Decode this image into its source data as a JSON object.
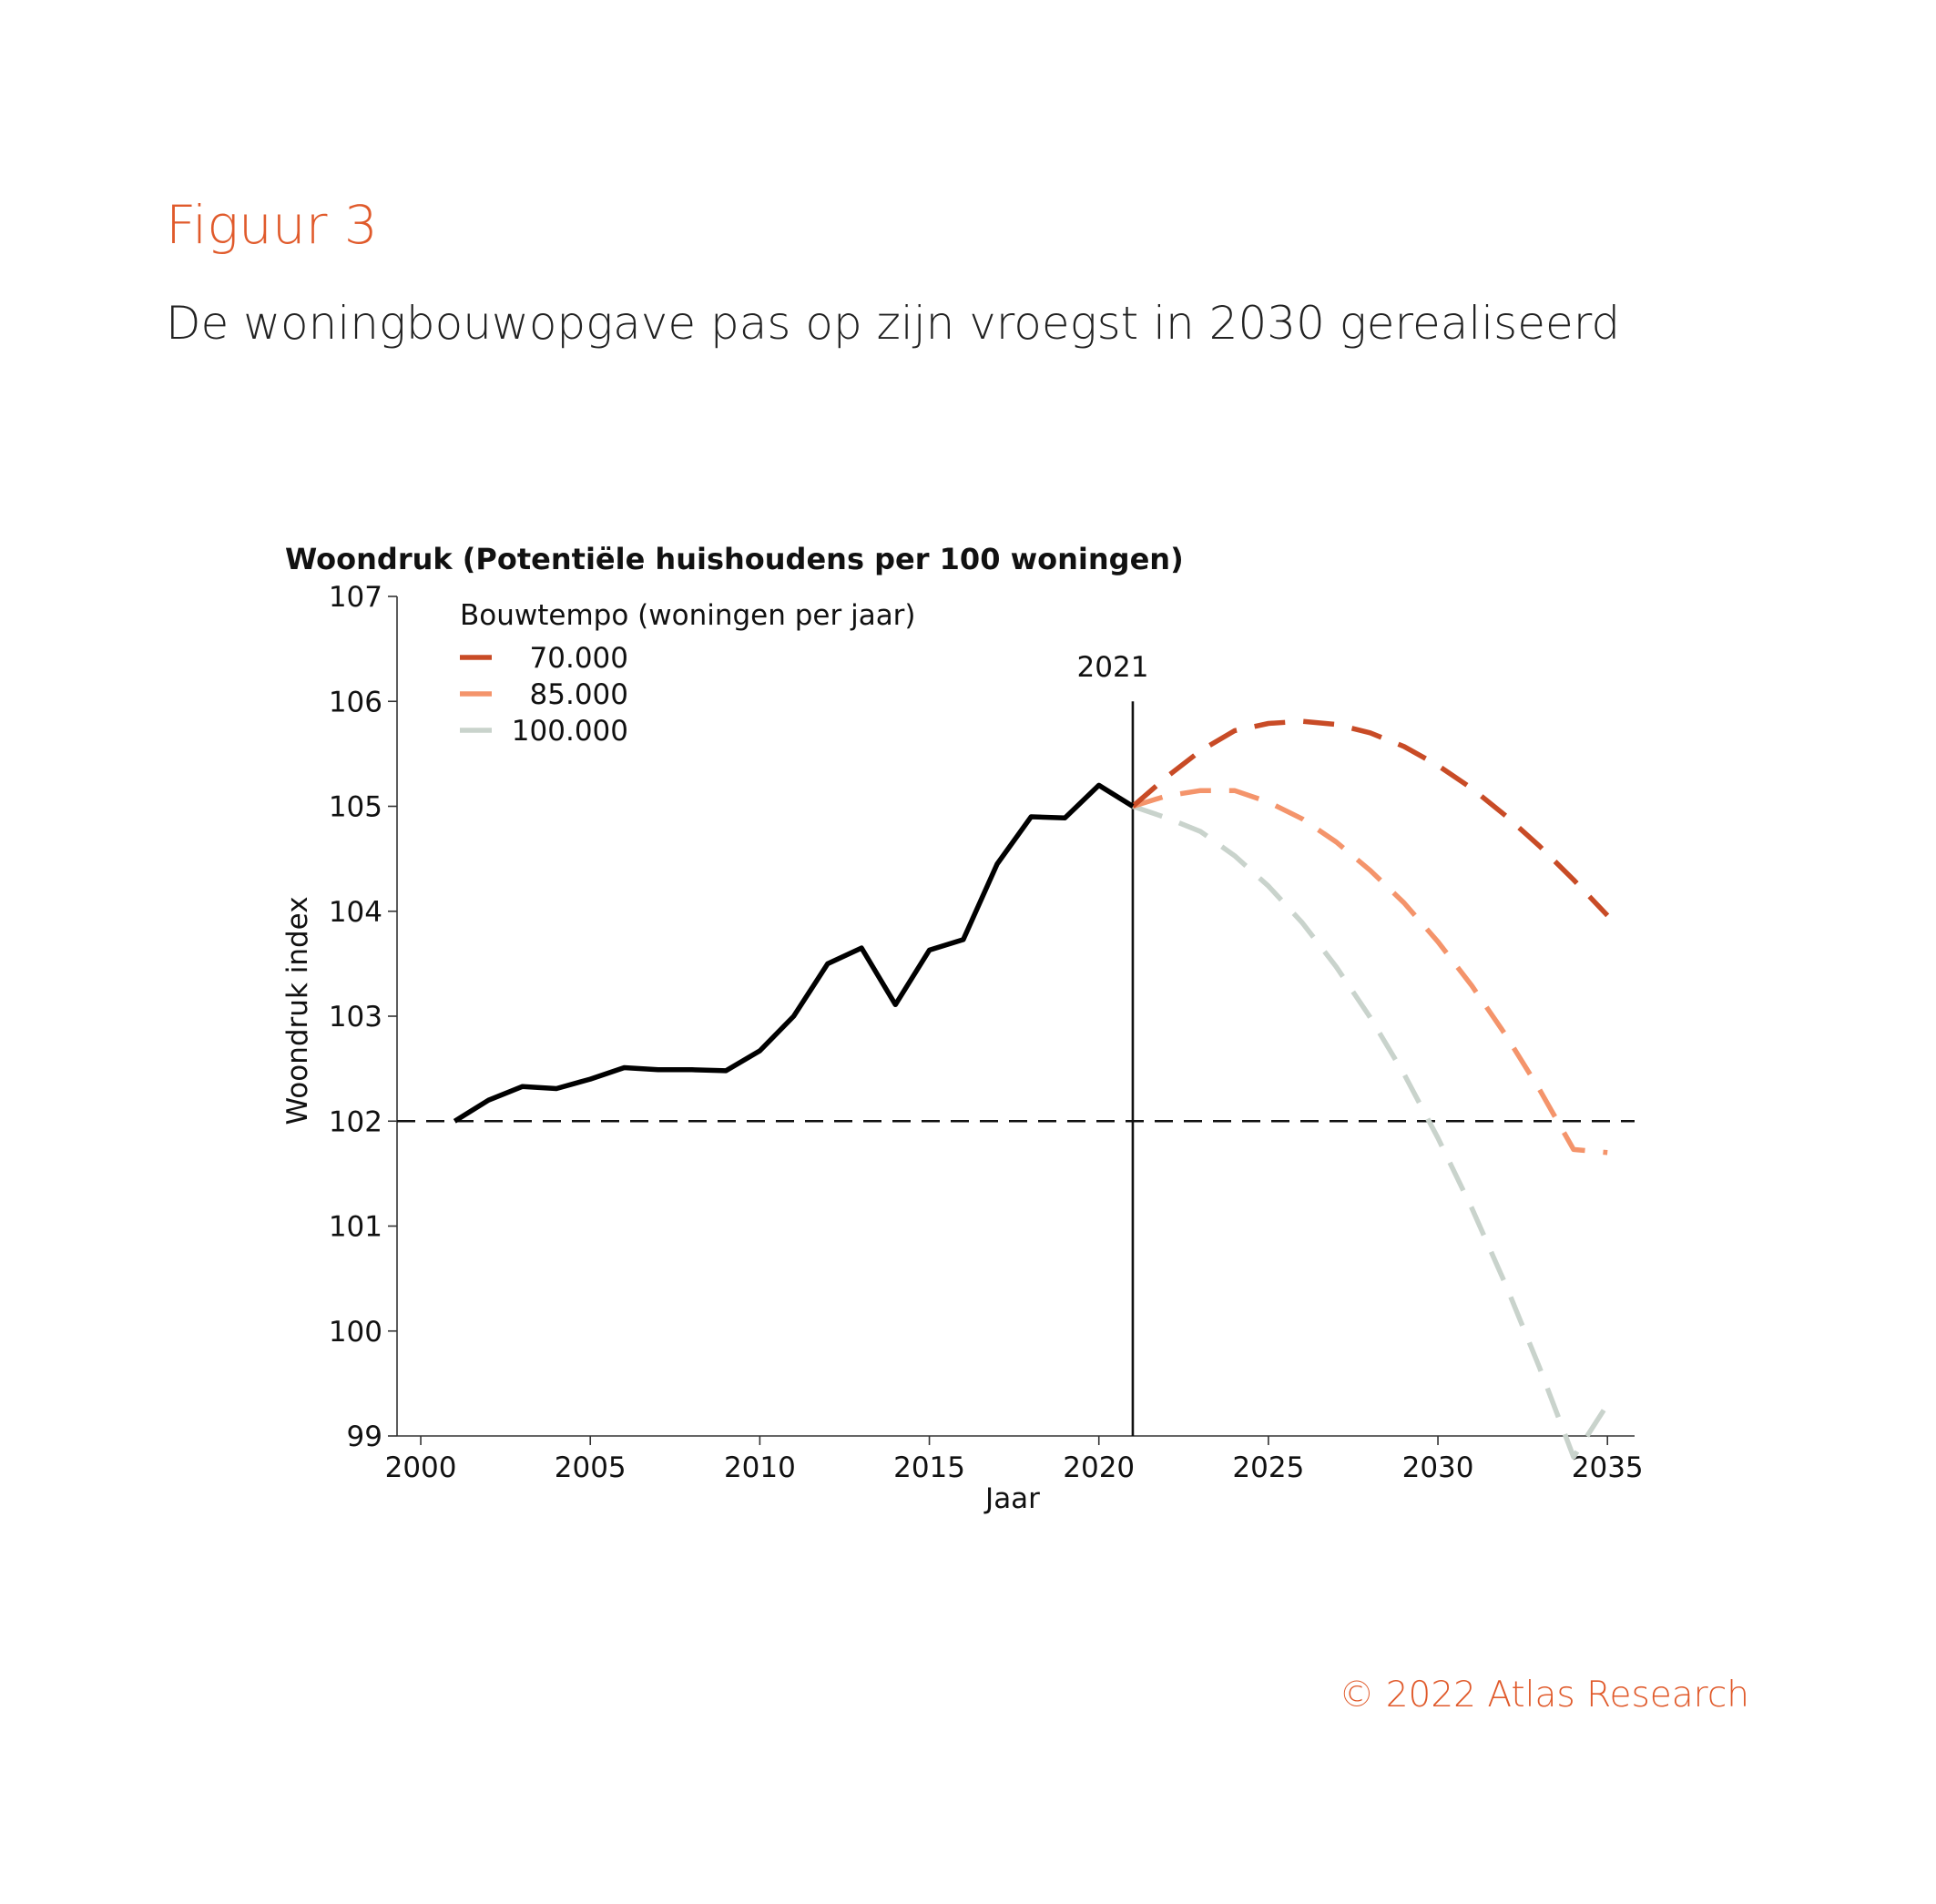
{
  "figure_label": "Figuur 3",
  "figure_title": "De woningbouwopgave pas op zijn vroegst in 2030 gerealiseerd",
  "copyright": "© 2022 Atlas Research",
  "chart_data": {
    "type": "line",
    "title": "Woondruk (Potentiële huishoudens per 100 woningen)",
    "xlabel": "Jaar",
    "ylabel": "Woondruk index",
    "xlim": [
      1999.3,
      2035.8
    ],
    "ylim": [
      99,
      107
    ],
    "xticks": [
      2000,
      2005,
      2010,
      2015,
      2020,
      2025,
      2030,
      2035
    ],
    "yticks": [
      99,
      100,
      101,
      102,
      103,
      104,
      105,
      106,
      107
    ],
    "grid": false,
    "legend": {
      "title": "Bouwtempo (woningen per jaar)",
      "placement": "top-left"
    },
    "reference_lines": {
      "horizontal_y": 102,
      "vertical_x": 2021,
      "vertical_label": "2021"
    },
    "historical": {
      "color": "#000000",
      "x": [
        2001,
        2002,
        2003,
        2004,
        2005,
        2006,
        2007,
        2008,
        2009,
        2010,
        2011,
        2012,
        2013,
        2014,
        2015,
        2016,
        2017,
        2018,
        2019,
        2020,
        2021
      ],
      "y": [
        102.0,
        102.2,
        102.33,
        102.31,
        102.4,
        102.51,
        102.49,
        102.49,
        102.48,
        102.67,
        103.0,
        103.5,
        103.65,
        103.11,
        103.63,
        103.73,
        104.45,
        104.9,
        104.89,
        105.2,
        105.0
      ]
    },
    "series": [
      {
        "name": "70.000",
        "color": "#c84b26",
        "x": [
          2021,
          2022,
          2023,
          2024,
          2025,
          2026,
          2027,
          2028,
          2029,
          2030,
          2031,
          2032,
          2033,
          2034,
          2035
        ],
        "y": [
          105.0,
          105.28,
          105.53,
          105.72,
          105.79,
          105.81,
          105.78,
          105.7,
          105.57,
          105.39,
          105.17,
          104.91,
          104.62,
          104.3,
          103.96
        ]
      },
      {
        "name": "85.000",
        "color": "#f4946b",
        "x": [
          2021,
          2022,
          2023,
          2024,
          2025,
          2026,
          2027,
          2028,
          2029,
          2030,
          2031,
          2032,
          2033,
          2034,
          2035
        ],
        "y": [
          105.0,
          105.1,
          105.15,
          105.15,
          105.04,
          104.88,
          104.66,
          104.39,
          104.08,
          103.71,
          103.29,
          102.82,
          102.3,
          101.73,
          101.7
        ]
      },
      {
        "name": "100.000",
        "color": "#c9d3cc",
        "x": [
          2021,
          2022,
          2023,
          2024,
          2025,
          2026,
          2027,
          2028,
          2029,
          2030,
          2031,
          2032,
          2033,
          2034,
          2035
        ],
        "y": [
          105.0,
          104.89,
          104.76,
          104.53,
          104.24,
          103.89,
          103.47,
          102.99,
          102.45,
          101.84,
          101.17,
          100.44,
          99.65,
          98.8,
          99.3
        ]
      }
    ]
  }
}
